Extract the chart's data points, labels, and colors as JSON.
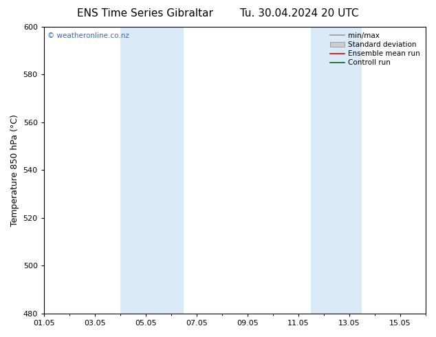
{
  "title_left": "ENS Time Series Gibraltar",
  "title_right": "Tu. 30.04.2024 20 UTC",
  "ylabel": "Temperature 850 hPa (°C)",
  "ylim": [
    480,
    600
  ],
  "yticks": [
    480,
    500,
    520,
    540,
    560,
    580,
    600
  ],
  "xlim": [
    0,
    15
  ],
  "xtick_labels": [
    "01.05",
    "03.05",
    "05.05",
    "07.05",
    "09.05",
    "11.05",
    "13.05",
    "15.05"
  ],
  "xtick_positions": [
    0,
    2,
    4,
    6,
    8,
    10,
    12,
    14
  ],
  "shade_bands": [
    {
      "start": 3.0,
      "end": 4.5
    },
    {
      "start": 4.5,
      "end": 5.5
    },
    {
      "start": 10.5,
      "end": 11.5
    },
    {
      "start": 11.5,
      "end": 12.5
    }
  ],
  "shade_color": "#daeaf7",
  "watermark_text": "© weatheronline.co.nz",
  "watermark_color": "#3366cc",
  "background_color": "#ffffff",
  "legend_items": [
    {
      "label": "min/max",
      "color": "#999999",
      "type": "line"
    },
    {
      "label": "Standard deviation",
      "color": "#cccccc",
      "type": "box"
    },
    {
      "label": "Ensemble mean run",
      "color": "#dd0000",
      "type": "line"
    },
    {
      "label": "Controll run",
      "color": "#006600",
      "type": "line"
    }
  ],
  "title_fontsize": 11,
  "axis_fontsize": 9,
  "tick_fontsize": 8,
  "legend_fontsize": 7.5
}
